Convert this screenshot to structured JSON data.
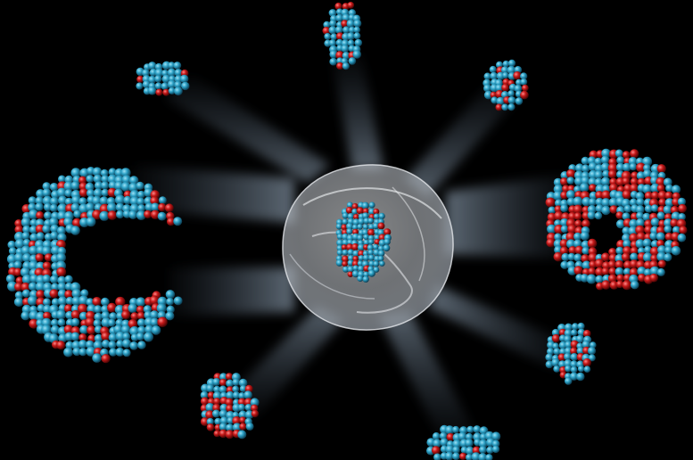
{
  "scene": {
    "background": "#000000",
    "atom_colors": {
      "primary": "#2b9fc4",
      "secondary": "#c41818"
    },
    "core_color": "#d9dde2",
    "beam_color": "#9fb3c8"
  }
}
